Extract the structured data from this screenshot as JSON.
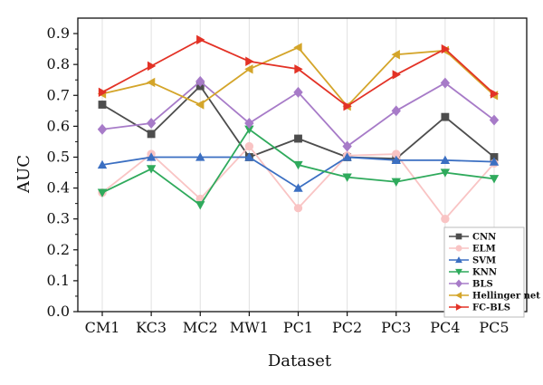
{
  "chart_data": {
    "type": "line",
    "title": "",
    "xlabel": "Dataset",
    "ylabel": "AUC",
    "categories": [
      "CM1",
      "KC3",
      "MC2",
      "MW1",
      "PC1",
      "PC2",
      "PC3",
      "PC4",
      "PC5"
    ],
    "ylim": [
      0,
      0.95
    ],
    "yticks": [
      "0.0",
      "0.1",
      "0.2",
      "0.3",
      "0.4",
      "0.5",
      "0.6",
      "0.7",
      "0.8",
      "0.9"
    ],
    "grid": "vertical",
    "legend_position": "bottom-right",
    "series": [
      {
        "name": "CNN",
        "color": "#4d4d4d",
        "marker": "square",
        "values": [
          0.67,
          0.575,
          0.73,
          0.5,
          0.56,
          0.5,
          0.495,
          0.63,
          0.5
        ]
      },
      {
        "name": "ELM",
        "color": "#f9c4c4",
        "marker": "circle",
        "values": [
          0.385,
          0.51,
          0.365,
          0.535,
          0.335,
          0.505,
          0.51,
          0.3,
          0.48
        ]
      },
      {
        "name": "SVM",
        "color": "#3b6fc2",
        "marker": "triangle-up",
        "values": [
          0.475,
          0.5,
          0.5,
          0.5,
          0.4,
          0.5,
          0.49,
          0.49,
          0.485
        ]
      },
      {
        "name": "KNN",
        "color": "#2faa5c",
        "marker": "triangle-down",
        "values": [
          0.385,
          0.462,
          0.345,
          0.59,
          0.475,
          0.435,
          0.42,
          0.45,
          0.43
        ]
      },
      {
        "name": "BLS",
        "color": "#a77bc8",
        "marker": "diamond",
        "values": [
          0.59,
          0.61,
          0.745,
          0.61,
          0.71,
          0.535,
          0.65,
          0.74,
          0.62
        ]
      },
      {
        "name": "Hellinger net",
        "color": "#d4a52a",
        "marker": "triangle-left",
        "values": [
          0.705,
          0.742,
          0.67,
          0.785,
          0.855,
          0.665,
          0.832,
          0.845,
          0.7
        ]
      },
      {
        "name": "FC-BLS",
        "color": "#e33226",
        "marker": "triangle-right",
        "values": [
          0.71,
          0.795,
          0.88,
          0.81,
          0.785,
          0.665,
          0.767,
          0.85,
          0.705
        ]
      }
    ]
  }
}
